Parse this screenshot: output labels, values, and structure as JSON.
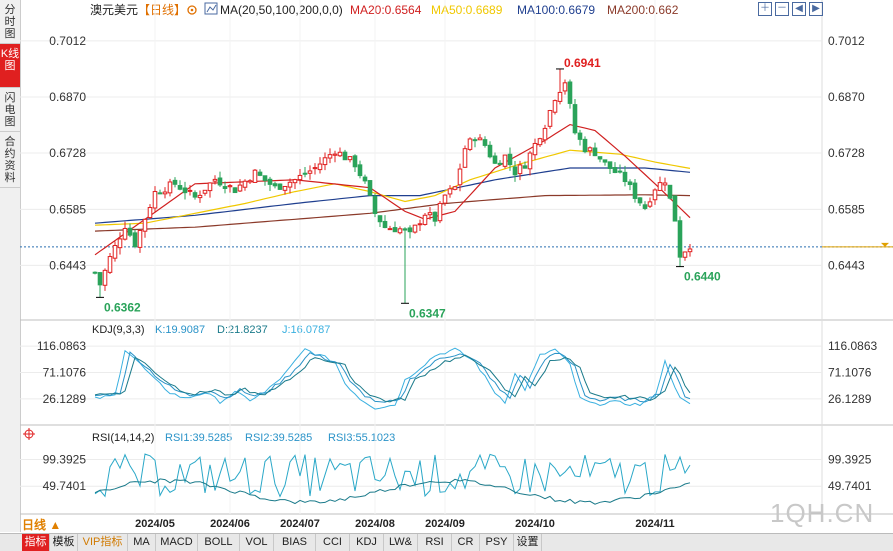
{
  "side_tabs": [
    {
      "label": "分时图",
      "active": false
    },
    {
      "label": "K线图",
      "active": true
    },
    {
      "label": "闪电图",
      "active": false
    },
    {
      "label": "合约资料",
      "active": false
    }
  ],
  "header": {
    "title": "澳元美元",
    "period": "【日线】",
    "ma_label": "MA(20,50,100,200,0,0)",
    "ma20": "MA20:0.6564",
    "ma50": "MA50:0.6689",
    "ma100": "MA100:0.6679",
    "ma200": "MA200:0.662"
  },
  "kdj_header": {
    "label": "KDJ(9,3,3)",
    "k": "K:19.9087",
    "d": "D:21.8237",
    "j": "J:16.0787"
  },
  "rsi_header": {
    "label": "RSI(14,14,2)",
    "rsi1": "RSI1:39.5285",
    "rsi2": "RSI2:39.5285",
    "rsi3": "RSI3:55.1023"
  },
  "period_button": "日线 ▲",
  "watermark": "1QH.CN",
  "bottom_tabs": [
    {
      "label": "指标",
      "active": true
    },
    {
      "label": "模板"
    },
    {
      "label": "VIP指标",
      "vip": true
    },
    {
      "label": "MA"
    },
    {
      "label": "MACD"
    },
    {
      "label": "BOLL"
    },
    {
      "label": "VOL"
    },
    {
      "label": "BIAS"
    },
    {
      "label": "CCI"
    },
    {
      "label": "KDJ"
    },
    {
      "label": "LW&"
    },
    {
      "label": "RSI"
    },
    {
      "label": "CR"
    },
    {
      "label": "PSY"
    },
    {
      "label": "设置"
    }
  ],
  "colors": {
    "up": "#e02020",
    "down": "#2aa35a",
    "ma20": "#d02020",
    "ma50": "#f0c800",
    "ma100": "#1f3f8f",
    "ma200": "#8b3a2a",
    "kdj_k": "#2a93c8",
    "kdj_d": "#1a7a8a",
    "kdj_j": "#3ab0e0",
    "rsi": "#2aa8c8"
  },
  "chart_data": {
    "type": "candlestick",
    "main": {
      "y_ticks": [
        0.7012,
        0.687,
        0.6728,
        0.6585,
        0.6443
      ],
      "ylim": [
        0.633,
        0.706
      ],
      "last_price": 0.649,
      "annotations": [
        {
          "label": "0.6941",
          "value": 0.6941,
          "index": 93
        },
        {
          "label": "0.6347",
          "value": 0.6347,
          "index": 62
        },
        {
          "label": "0.6362",
          "value": 0.6362,
          "index": 1
        },
        {
          "label": "0.6440",
          "value": 0.644,
          "index": 117
        }
      ],
      "x_labels": [
        {
          "label": "2024/05",
          "index": 12
        },
        {
          "label": "2024/06",
          "index": 27
        },
        {
          "label": "2024/07",
          "index": 41
        },
        {
          "label": "2024/08",
          "index": 56
        },
        {
          "label": "2024/09",
          "index": 70
        },
        {
          "label": "2024/10",
          "index": 88
        },
        {
          "label": "2024/11",
          "index": 112
        }
      ],
      "anchors": [
        [
          0,
          0.6425
        ],
        [
          1,
          0.6395
        ],
        [
          3,
          0.6462
        ],
        [
          6,
          0.6545
        ],
        [
          8,
          0.6498
        ],
        [
          12,
          0.6628
        ],
        [
          16,
          0.665
        ],
        [
          20,
          0.6615
        ],
        [
          24,
          0.6662
        ],
        [
          28,
          0.6635
        ],
        [
          32,
          0.6678
        ],
        [
          36,
          0.664
        ],
        [
          40,
          0.666
        ],
        [
          44,
          0.669
        ],
        [
          48,
          0.6735
        ],
        [
          52,
          0.67
        ],
        [
          54,
          0.665
        ],
        [
          56,
          0.6575
        ],
        [
          58,
          0.654
        ],
        [
          61,
          0.6535
        ],
        [
          63,
          0.652
        ],
        [
          66,
          0.6575
        ],
        [
          68,
          0.656
        ],
        [
          70,
          0.662
        ],
        [
          72,
          0.664
        ],
        [
          74,
          0.674
        ],
        [
          76,
          0.677
        ],
        [
          78,
          0.6748
        ],
        [
          80,
          0.67
        ],
        [
          82,
          0.672
        ],
        [
          84,
          0.668
        ],
        [
          86,
          0.67
        ],
        [
          88,
          0.675
        ],
        [
          90,
          0.68
        ],
        [
          92,
          0.687
        ],
        [
          94,
          0.691
        ],
        [
          96,
          0.678
        ],
        [
          98,
          0.674
        ],
        [
          100,
          0.673
        ],
        [
          102,
          0.67
        ],
        [
          104,
          0.668
        ],
        [
          106,
          0.666
        ],
        [
          108,
          0.662
        ],
        [
          110,
          0.659
        ],
        [
          112,
          0.664
        ],
        [
          114,
          0.666
        ],
        [
          116,
          0.656
        ],
        [
          117,
          0.647
        ],
        [
          119,
          0.6495
        ]
      ],
      "ma20": [
        [
          0,
          0.647
        ],
        [
          20,
          0.665
        ],
        [
          40,
          0.666
        ],
        [
          55,
          0.664
        ],
        [
          62,
          0.658
        ],
        [
          66,
          0.656
        ],
        [
          72,
          0.658
        ],
        [
          80,
          0.669
        ],
        [
          90,
          0.676
        ],
        [
          95,
          0.68
        ],
        [
          100,
          0.6785
        ],
        [
          106,
          0.672
        ],
        [
          112,
          0.665
        ],
        [
          119,
          0.6564
        ]
      ],
      "ma50": [
        [
          0,
          0.6545
        ],
        [
          10,
          0.655
        ],
        [
          20,
          0.6575
        ],
        [
          30,
          0.66
        ],
        [
          40,
          0.663
        ],
        [
          48,
          0.665
        ],
        [
          55,
          0.663
        ],
        [
          62,
          0.6605
        ],
        [
          68,
          0.662
        ],
        [
          75,
          0.666
        ],
        [
          85,
          0.67
        ],
        [
          95,
          0.6735
        ],
        [
          105,
          0.6725
        ],
        [
          112,
          0.6705
        ],
        [
          119,
          0.6689
        ]
      ],
      "ma100": [
        [
          0,
          0.655
        ],
        [
          20,
          0.657
        ],
        [
          40,
          0.66
        ],
        [
          55,
          0.662
        ],
        [
          65,
          0.662
        ],
        [
          80,
          0.666
        ],
        [
          95,
          0.669
        ],
        [
          110,
          0.669
        ],
        [
          119,
          0.6679
        ]
      ],
      "ma200": [
        [
          0,
          0.653
        ],
        [
          20,
          0.654
        ],
        [
          40,
          0.656
        ],
        [
          55,
          0.6575
        ],
        [
          70,
          0.66
        ],
        [
          90,
          0.662
        ],
        [
          110,
          0.6622
        ],
        [
          119,
          0.662
        ]
      ]
    },
    "kdj": {
      "y_ticks": [
        116.0863,
        71.1076,
        26.1289
      ],
      "ylim": [
        -10,
        135
      ],
      "k_last": 19.9087,
      "d_last": 21.8237,
      "j_last": 16.0787
    },
    "rsi": {
      "y_ticks": [
        99.3925,
        49.7401
      ],
      "ylim": [
        0,
        130
      ],
      "rsi1_last": 39.5285,
      "rsi2_last": 39.5285,
      "rsi3_last": 55.1023
    }
  }
}
